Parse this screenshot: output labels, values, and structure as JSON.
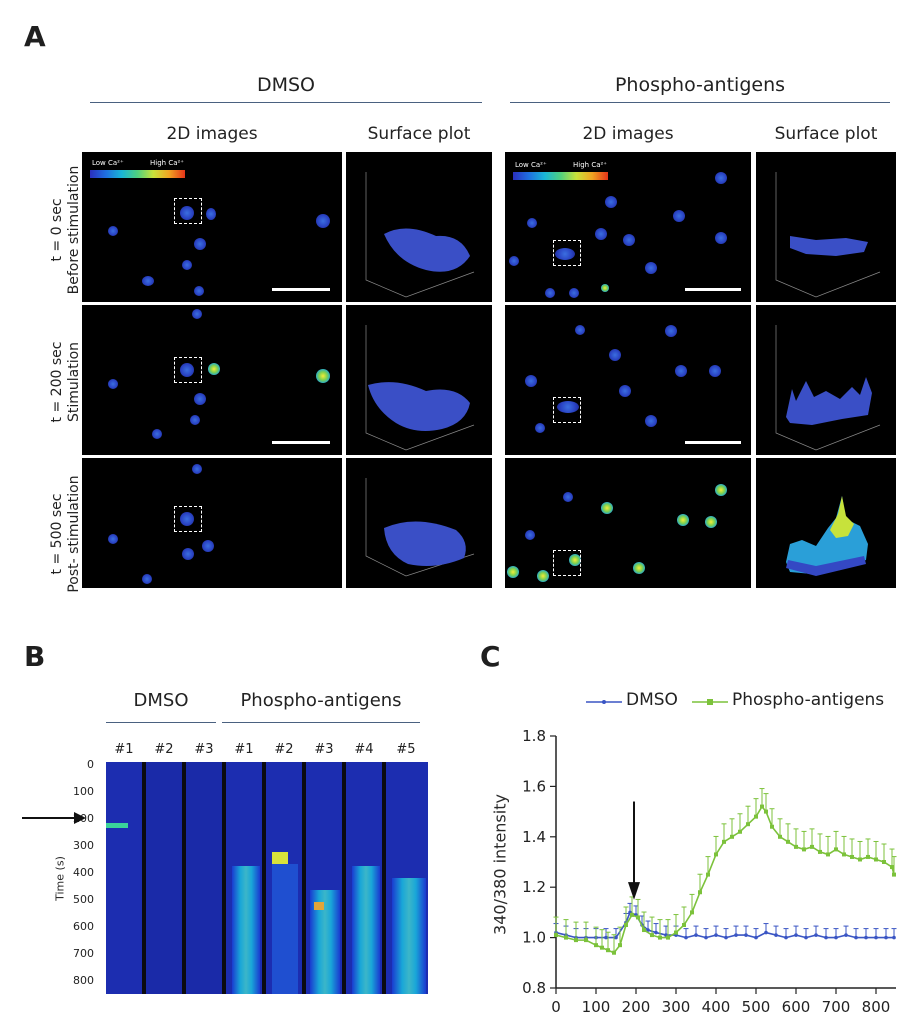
{
  "panels": {
    "a": "A",
    "b": "B",
    "c": "C"
  },
  "panel_a": {
    "groups": [
      "DMSO",
      "Phospho-antigens"
    ],
    "column_headers": [
      "2D images",
      "Surface plot"
    ],
    "colorbar": {
      "low": "Low Ca²⁺",
      "high": "High Ca²⁺"
    },
    "rows": [
      {
        "time": "t = 0 sec",
        "phase": "Before stimulation"
      },
      {
        "time": "t = 200 sec",
        "phase": "Stimulation"
      },
      {
        "time": "t = 500 sec",
        "phase": "Post- stimulation"
      }
    ]
  },
  "panel_b": {
    "groups": [
      "DMSO",
      "Phospho-antigens"
    ],
    "lanes": [
      "#1",
      "#2",
      "#3",
      "#1",
      "#2",
      "#3",
      "#4",
      "#5"
    ],
    "ylabel": "Time (s)",
    "yticks": [
      "0",
      "100",
      "200",
      "300",
      "400",
      "500",
      "600",
      "700",
      "800"
    ],
    "arrow_time": 200
  },
  "chart_data": {
    "type": "line",
    "title": "",
    "xlabel": "",
    "ylabel": "340/380 intensity",
    "xlim": [
      0,
      850
    ],
    "ylim": [
      0.8,
      1.8
    ],
    "xticks": [
      0,
      100,
      200,
      300,
      400,
      500,
      600,
      700,
      800
    ],
    "yticks": [
      0.8,
      1.0,
      1.2,
      1.4,
      1.6,
      1.8
    ],
    "ytick_labels": [
      "0.8",
      "1.0",
      "1.2",
      "1.4",
      "1.6",
      "1.8"
    ],
    "arrow_x": 195,
    "legend_position": "top",
    "series": [
      {
        "name": "DMSO",
        "color": "#3a55c4",
        "x": [
          0,
          25,
          50,
          75,
          100,
          125,
          150,
          175,
          185,
          200,
          215,
          230,
          250,
          275,
          300,
          325,
          350,
          375,
          400,
          425,
          450,
          475,
          500,
          525,
          550,
          575,
          600,
          625,
          650,
          675,
          700,
          725,
          750,
          775,
          800,
          825,
          845
        ],
        "y": [
          1.02,
          1.01,
          1.0,
          1.0,
          1.0,
          1.0,
          1.0,
          1.06,
          1.1,
          1.09,
          1.05,
          1.03,
          1.02,
          1.01,
          1.01,
          1.0,
          1.01,
          1.0,
          1.01,
          1.0,
          1.01,
          1.01,
          1.0,
          1.02,
          1.01,
          1.0,
          1.01,
          1.0,
          1.01,
          1.0,
          1.0,
          1.01,
          1.0,
          1.0,
          1.0,
          1.0,
          1.0
        ]
      },
      {
        "name": "Phospho-antigens",
        "color": "#7cc23b",
        "x": [
          0,
          25,
          50,
          75,
          100,
          115,
          130,
          145,
          160,
          175,
          190,
          205,
          220,
          240,
          260,
          280,
          300,
          320,
          340,
          360,
          380,
          400,
          420,
          440,
          460,
          480,
          500,
          515,
          525,
          540,
          560,
          580,
          600,
          620,
          640,
          660,
          680,
          700,
          720,
          740,
          760,
          780,
          800,
          820,
          840,
          845
        ],
        "y": [
          1.01,
          1.0,
          0.99,
          0.99,
          0.97,
          0.96,
          0.95,
          0.94,
          0.97,
          1.05,
          1.09,
          1.08,
          1.03,
          1.01,
          1.0,
          1.0,
          1.02,
          1.05,
          1.1,
          1.18,
          1.25,
          1.33,
          1.38,
          1.4,
          1.42,
          1.45,
          1.48,
          1.52,
          1.5,
          1.44,
          1.4,
          1.38,
          1.36,
          1.35,
          1.36,
          1.34,
          1.33,
          1.35,
          1.33,
          1.32,
          1.31,
          1.32,
          1.31,
          1.3,
          1.28,
          1.25
        ]
      }
    ]
  }
}
